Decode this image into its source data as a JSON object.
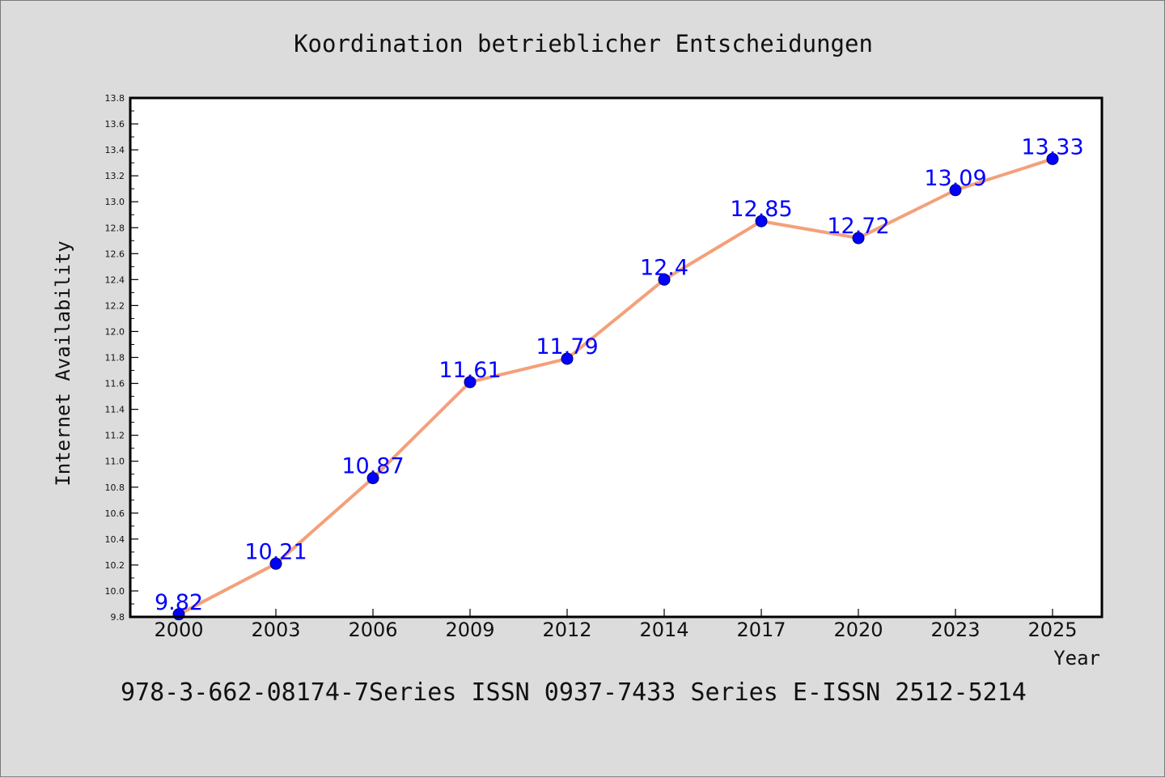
{
  "chart_data": {
    "type": "line",
    "title": "Koordination betrieblicher Entscheidungen",
    "xlabel": "Year",
    "ylabel": "Internet Availability",
    "categories": [
      "2000",
      "2003",
      "2006",
      "2009",
      "2012",
      "2014",
      "2017",
      "2020",
      "2023",
      "2025"
    ],
    "series": [
      {
        "values": [
          9.82,
          10.21,
          10.87,
          11.61,
          11.79,
          12.4,
          12.85,
          12.72,
          13.09,
          13.33
        ],
        "labels": [
          "9.82",
          "10.21",
          "10.87",
          "11.61",
          "11.79",
          "12.4",
          "12.85",
          "12.72",
          "13.09",
          "13.33"
        ],
        "line_color": "#f4a07a",
        "marker_color": "#0000ff"
      }
    ],
    "ylim": [
      9.8,
      13.8
    ],
    "yticks": [
      "9.8",
      "10.0",
      "10.2",
      "10.4",
      "10.6",
      "10.8",
      "11.0",
      "11.2",
      "11.4",
      "11.6",
      "11.8",
      "12.0",
      "12.2",
      "12.4",
      "12.6",
      "12.8",
      "13.0",
      "13.2",
      "13.4",
      "13.6",
      "13.8"
    ],
    "grid": false,
    "legend": "none",
    "label_color": "#0000ff"
  },
  "footer": {
    "text": "978-3-662-08174-7Series ISSN 0937-7433 Series E-ISSN 2512-5214"
  }
}
